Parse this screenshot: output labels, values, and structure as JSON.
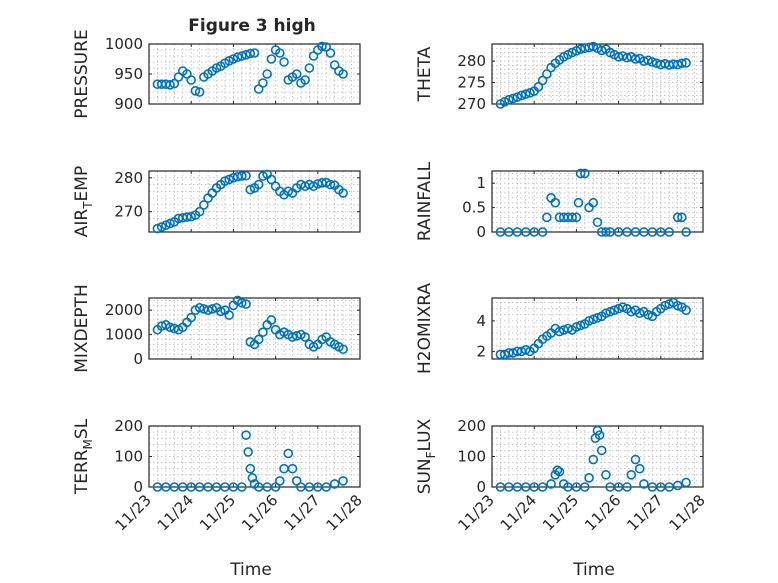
{
  "figure": {
    "title": "Figure 3 high",
    "marker_color": "#0072bd"
  },
  "xaxis": {
    "label": "Time",
    "ticks": [
      0,
      1,
      2,
      3,
      4,
      5
    ],
    "ticklabels": [
      "11/23",
      "11/24",
      "11/25",
      "11/26",
      "11/27",
      "11/28"
    ],
    "xlim": [
      0,
      5
    ]
  },
  "chart_data": [
    {
      "type": "scatter",
      "ylabel": "PRESSURE",
      "ylim": [
        900,
        1000
      ],
      "yticks": [
        900,
        950,
        1000
      ],
      "title": "Figure 3 high",
      "marker": "circle",
      "grid": true,
      "x": [
        0.2,
        0.3,
        0.4,
        0.5,
        0.6,
        0.7,
        0.8,
        0.9,
        1.0,
        1.1,
        1.2,
        1.3,
        1.4,
        1.5,
        1.6,
        1.7,
        1.8,
        1.9,
        2.0,
        2.1,
        2.2,
        2.3,
        2.4,
        2.5,
        2.6,
        2.7,
        2.8,
        2.9,
        3.0,
        3.1,
        3.2,
        3.3,
        3.4,
        3.5,
        3.6,
        3.7,
        3.8,
        3.9,
        4.0,
        4.1,
        4.2,
        4.3,
        4.4,
        4.5,
        4.6,
        4.7,
        4.8,
        4.9,
        5.0
      ],
      "y": [
        933,
        933,
        933,
        932,
        934,
        945,
        955,
        950,
        940,
        922,
        920,
        945,
        950,
        955,
        960,
        963,
        968,
        972,
        975,
        978,
        980,
        982,
        984,
        985,
        925,
        935,
        950,
        975,
        990,
        985,
        970,
        940,
        945,
        950,
        935,
        940,
        960,
        980,
        990,
        996,
        995,
        985,
        965,
        955,
        950,
        null,
        null,
        null,
        null
      ]
    },
    {
      "type": "scatter",
      "ylabel": "THETA",
      "ylim": [
        270,
        284
      ],
      "yticks": [
        270,
        275,
        280
      ],
      "marker": "circle",
      "grid": true,
      "x": [
        0.2,
        0.3,
        0.4,
        0.5,
        0.6,
        0.7,
        0.8,
        0.9,
        1.0,
        1.1,
        1.2,
        1.3,
        1.4,
        1.5,
        1.6,
        1.7,
        1.8,
        1.9,
        2.0,
        2.1,
        2.2,
        2.3,
        2.4,
        2.5,
        2.6,
        2.7,
        2.8,
        2.9,
        3.0,
        3.1,
        3.2,
        3.3,
        3.4,
        3.5,
        3.6,
        3.7,
        3.8,
        3.9,
        4.0,
        4.1,
        4.2,
        4.3,
        4.4,
        4.5,
        4.6,
        4.7,
        4.8
      ],
      "y": [
        270,
        270.5,
        271,
        271.3,
        271.6,
        272,
        272.3,
        272.6,
        273,
        274,
        275.5,
        277,
        278.5,
        279.5,
        280.3,
        281,
        281.5,
        282,
        282.4,
        282.8,
        283,
        283.2,
        283.4,
        283,
        282.5,
        282.8,
        282,
        281.5,
        281,
        281.2,
        280.8,
        281,
        280.5,
        280.6,
        280,
        280.2,
        279.8,
        279.5,
        279.2,
        279.4,
        279.1,
        279.3,
        279.2,
        279.5,
        279.6,
        null,
        null
      ]
    },
    {
      "type": "scatter",
      "ylabel": "AIR_TEMP",
      "ylim": [
        264,
        282
      ],
      "yticks": [
        270,
        280
      ],
      "marker": "circle",
      "grid": true,
      "x": [
        0.2,
        0.3,
        0.4,
        0.5,
        0.6,
        0.7,
        0.8,
        0.9,
        1.0,
        1.1,
        1.2,
        1.3,
        1.4,
        1.5,
        1.6,
        1.7,
        1.8,
        1.9,
        2.0,
        2.1,
        2.2,
        2.3,
        2.4,
        2.5,
        2.6,
        2.7,
        2.8,
        2.9,
        3.0,
        3.1,
        3.2,
        3.3,
        3.4,
        3.5,
        3.6,
        3.7,
        3.8,
        3.9,
        4.0,
        4.1,
        4.2,
        4.3,
        4.4,
        4.5,
        4.6,
        4.7,
        4.8
      ],
      "y": [
        265,
        265.5,
        266,
        266.5,
        267,
        268,
        268.2,
        268.4,
        268.5,
        269,
        270,
        272,
        274,
        275.5,
        277,
        278,
        279,
        279.5,
        280,
        280.3,
        280.5,
        280.6,
        276.5,
        277,
        278,
        280.5,
        281,
        279.5,
        277.5,
        276,
        275,
        276,
        275.5,
        277,
        278,
        277.5,
        278,
        277.5,
        278.2,
        278.5,
        278.6,
        278,
        277.8,
        276.5,
        275.5,
        null,
        null
      ]
    },
    {
      "type": "scatter",
      "ylabel": "RAINFALL",
      "ylim": [
        0,
        1.25
      ],
      "yticks": [
        0,
        0.5,
        1
      ],
      "marker": "circle",
      "grid": true,
      "x": [
        0.2,
        0.4,
        0.6,
        0.8,
        1.0,
        1.2,
        1.3,
        1.4,
        1.5,
        1.6,
        1.7,
        1.8,
        1.9,
        2.0,
        2.05,
        2.1,
        2.2,
        2.3,
        2.4,
        2.5,
        2.6,
        2.7,
        2.8,
        3.0,
        3.2,
        3.4,
        3.6,
        3.8,
        4.0,
        4.2,
        4.4,
        4.5,
        4.6
      ],
      "y": [
        0,
        0,
        0,
        0,
        0,
        0,
        0.3,
        0.7,
        0.6,
        0.3,
        0.3,
        0.3,
        0.3,
        0.3,
        0.6,
        1.2,
        1.2,
        0.5,
        0.6,
        0.2,
        0,
        0,
        0,
        0,
        0,
        0,
        0,
        0,
        0,
        0,
        0.3,
        0.3,
        0
      ]
    },
    {
      "type": "scatter",
      "ylabel": "MIXDEPTH",
      "ylim": [
        0,
        2500
      ],
      "yticks": [
        0,
        1000,
        2000
      ],
      "marker": "circle",
      "grid": true,
      "x": [
        0.2,
        0.3,
        0.4,
        0.5,
        0.6,
        0.7,
        0.8,
        0.9,
        1.0,
        1.1,
        1.2,
        1.3,
        1.4,
        1.5,
        1.6,
        1.7,
        1.8,
        1.9,
        2.0,
        2.1,
        2.2,
        2.3,
        2.4,
        2.5,
        2.6,
        2.7,
        2.8,
        2.9,
        3.0,
        3.1,
        3.2,
        3.3,
        3.4,
        3.5,
        3.6,
        3.7,
        3.8,
        3.9,
        4.0,
        4.1,
        4.2,
        4.3,
        4.4,
        4.5,
        4.6,
        4.7,
        4.8
      ],
      "y": [
        1200,
        1350,
        1400,
        1300,
        1250,
        1200,
        1300,
        1500,
        1700,
        2000,
        2100,
        2050,
        2000,
        2050,
        2100,
        1950,
        2000,
        1800,
        2200,
        2400,
        2300,
        2250,
        700,
        600,
        800,
        1100,
        1400,
        1600,
        1200,
        1000,
        1100,
        1000,
        900,
        950,
        1000,
        900,
        600,
        500,
        600,
        800,
        900,
        700,
        600,
        500,
        400,
        null,
        null
      ]
    },
    {
      "type": "scatter",
      "ylabel": "H2OMIXRA",
      "ylim": [
        1.5,
        5.5
      ],
      "yticks": [
        2,
        4
      ],
      "marker": "circle",
      "grid": true,
      "x": [
        0.2,
        0.3,
        0.4,
        0.5,
        0.6,
        0.7,
        0.8,
        0.9,
        1.0,
        1.1,
        1.2,
        1.3,
        1.4,
        1.5,
        1.6,
        1.7,
        1.8,
        1.9,
        2.0,
        2.1,
        2.2,
        2.3,
        2.4,
        2.5,
        2.6,
        2.7,
        2.8,
        2.9,
        3.0,
        3.1,
        3.2,
        3.3,
        3.4,
        3.5,
        3.6,
        3.7,
        3.8,
        3.9,
        4.0,
        4.1,
        4.2,
        4.3,
        4.4,
        4.5,
        4.6,
        4.7,
        4.8
      ],
      "y": [
        1.8,
        1.8,
        1.9,
        1.9,
        2.0,
        2.0,
        2.1,
        2.0,
        2.2,
        2.5,
        2.8,
        3.0,
        3.2,
        3.5,
        3.3,
        3.4,
        3.5,
        3.4,
        3.6,
        3.7,
        3.8,
        4.0,
        4.1,
        4.2,
        4.3,
        4.5,
        4.6,
        4.7,
        4.8,
        4.9,
        4.8,
        4.6,
        4.7,
        4.5,
        4.6,
        4.4,
        4.3,
        4.6,
        4.8,
        5.0,
        5.1,
        5.2,
        5.0,
        4.9,
        4.7,
        null,
        null
      ]
    },
    {
      "type": "scatter",
      "ylabel": "TERR_MSL",
      "ylim": [
        0,
        200
      ],
      "yticks": [
        0,
        100,
        200
      ],
      "marker": "circle",
      "grid": true,
      "x": [
        0.2,
        0.4,
        0.6,
        0.8,
        1.0,
        1.2,
        1.4,
        1.6,
        1.8,
        2.0,
        2.2,
        2.3,
        2.35,
        2.4,
        2.45,
        2.5,
        2.6,
        2.8,
        3.0,
        3.1,
        3.2,
        3.3,
        3.4,
        3.5,
        3.6,
        3.8,
        4.0,
        4.2,
        4.4,
        4.6
      ],
      "y": [
        0,
        0,
        0,
        0,
        0,
        0,
        0,
        0,
        0,
        0,
        0,
        170,
        115,
        60,
        30,
        10,
        0,
        0,
        0,
        20,
        60,
        110,
        60,
        20,
        0,
        0,
        0,
        0,
        10,
        20
      ]
    },
    {
      "type": "scatter",
      "ylabel": "SUN_FLUX",
      "ylim": [
        0,
        200
      ],
      "yticks": [
        0,
        100,
        200
      ],
      "marker": "circle",
      "grid": true,
      "x": [
        0.2,
        0.4,
        0.6,
        0.8,
        1.0,
        1.2,
        1.4,
        1.5,
        1.55,
        1.6,
        1.7,
        1.8,
        2.0,
        2.2,
        2.3,
        2.4,
        2.45,
        2.5,
        2.55,
        2.6,
        2.7,
        2.8,
        3.0,
        3.2,
        3.3,
        3.4,
        3.5,
        3.6,
        3.8,
        4.0,
        4.2,
        4.4,
        4.6
      ],
      "y": [
        0,
        0,
        0,
        0,
        0,
        0,
        10,
        40,
        55,
        50,
        10,
        0,
        0,
        0,
        30,
        90,
        160,
        185,
        170,
        120,
        40,
        0,
        0,
        0,
        40,
        90,
        60,
        10,
        0,
        0,
        0,
        5,
        15
      ]
    }
  ]
}
